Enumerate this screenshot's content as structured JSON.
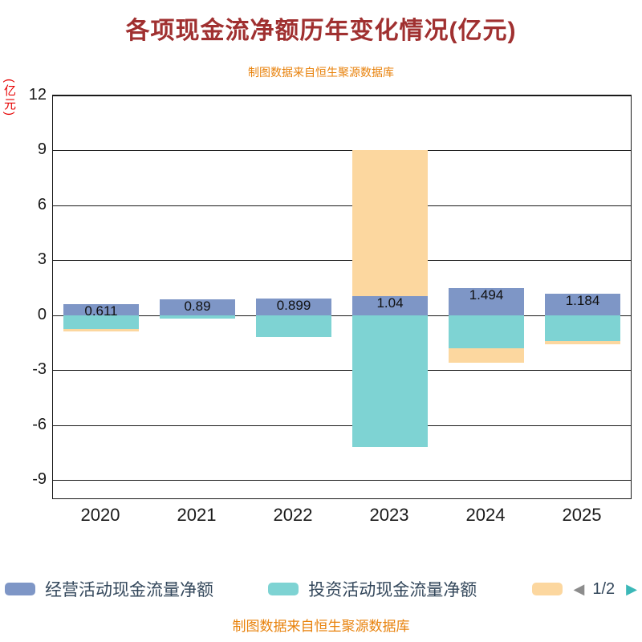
{
  "title": "各项现金流净额历年变化情况(亿元)",
  "source_note_top": "制图数据来自恒生聚源数据库",
  "source_note_bottom": "制图数据来自恒生聚源数据库",
  "chart_data": {
    "type": "bar",
    "stacked": true,
    "title": "各项现金流净额历年变化情况(亿元)",
    "ylabel": "(亿元)",
    "xlabel": "",
    "categories": [
      "2020",
      "2021",
      "2022",
      "2023",
      "2024",
      "2025"
    ],
    "yticks": [
      12,
      9,
      6,
      3,
      0,
      -3,
      -6,
      -9
    ],
    "ylim": [
      -10,
      12
    ],
    "grid": true,
    "legend_position": "bottom",
    "series": [
      {
        "key": "operating",
        "name": "经营活动现金流量净额",
        "color": "#7E96C6",
        "values": [
          0.611,
          0.89,
          0.899,
          1.04,
          1.494,
          1.184
        ],
        "value_labels": [
          "0.611",
          "0.89",
          "0.899",
          "1.04",
          "1.494",
          "1.184"
        ]
      },
      {
        "key": "investing",
        "name": "投资活动现金流量净额",
        "color": "#7ED3D3",
        "values": [
          -0.75,
          -0.2,
          -1.2,
          -7.2,
          -1.8,
          -1.4
        ]
      },
      {
        "key": "series3",
        "name": "",
        "color": "#FCD79F",
        "values": [
          -0.15,
          0,
          0,
          8.0,
          -0.8,
          -0.2
        ]
      }
    ]
  },
  "legend": {
    "items": [
      {
        "label": "经营活动现金流量净额",
        "color": "#7E96C6"
      },
      {
        "label": "投资活动现金流量净额",
        "color": "#7ED3D3"
      },
      {
        "label": "",
        "color": "#FCD79F"
      }
    ],
    "pagination": {
      "prev": "◀",
      "page": "1/2",
      "next": "▶"
    }
  },
  "colors": {
    "title": "#A03030",
    "source_note": "#E8820C",
    "ylabel": "#E60000",
    "axis": "#1A1A1A",
    "tick_label": "#1A1A1A",
    "bar_label": "#111111",
    "legend_text": "#33475B",
    "pagination_prev": "#8C8C8C",
    "pagination_next": "#3BB8B8",
    "background": "#FFFFFF"
  }
}
